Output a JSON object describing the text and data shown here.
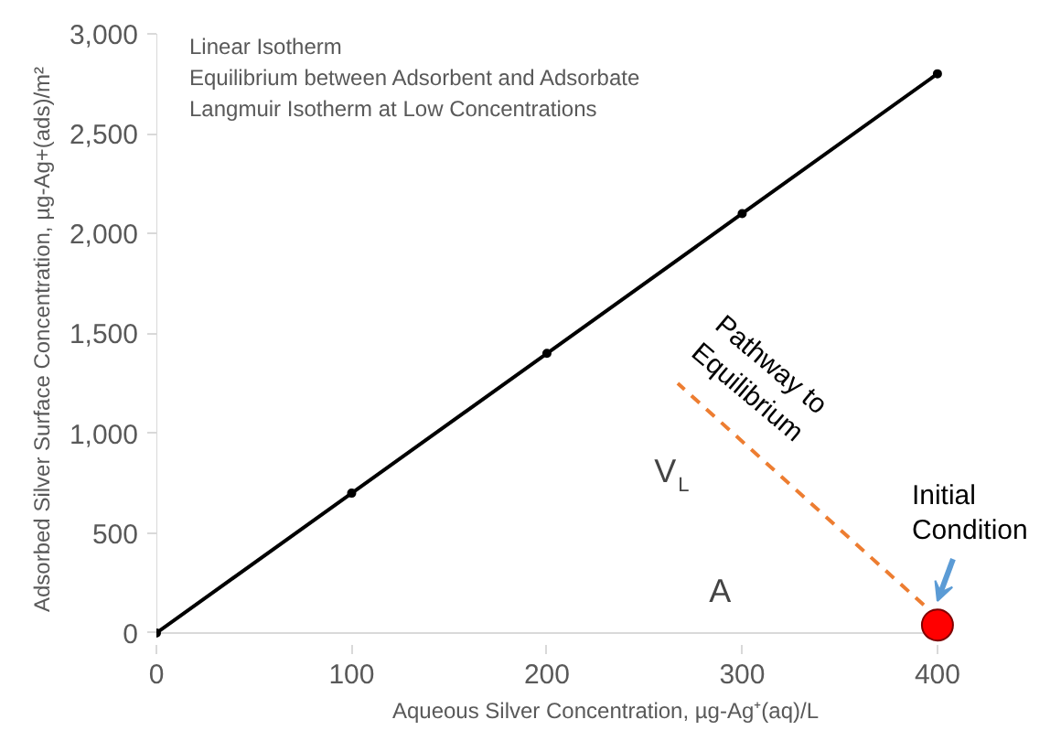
{
  "chart_data": {
    "type": "line",
    "xlabel": "Aqueous Silver Concentration, µg-Ag⁺(aq)/L",
    "ylabel": "Adsorbed Silver Surface Concentration, µg-Ag+(ads)/m²",
    "x": [
      0,
      100,
      200,
      300,
      400
    ],
    "series": [
      {
        "color": "#000000",
        "marker": "circle",
        "line_style": "solid",
        "values": [
          0,
          700,
          1400,
          2100,
          2800
        ]
      },
      {
        "type": "line",
        "color": "#ed7d31",
        "marker": "none",
        "line_style": "dashed",
        "x": [
          393,
          267
        ],
        "values": [
          140,
          1250
        ]
      },
      {
        "type": "scatter",
        "color": "#ff0000",
        "marker": "circle",
        "x": [
          400
        ],
        "values": [
          40
        ]
      }
    ],
    "xlim": [
      0,
      400
    ],
    "xticks": [
      0,
      100,
      200,
      300,
      400
    ],
    "ylim": [
      0,
      3000
    ],
    "yticks": [
      {
        "value": 0,
        "label": "0"
      },
      {
        "value": 500,
        "label": "500"
      },
      {
        "value": 1000,
        "label": "1,000"
      },
      {
        "value": 1500,
        "label": "1,500"
      },
      {
        "value": 2000,
        "label": "2,000"
      },
      {
        "value": 2500,
        "label": "2,500"
      },
      {
        "value": 3000,
        "label": "3,000"
      }
    ],
    "grid": false,
    "annotations": [
      "Linear Isotherm",
      "Equilibrium between Adsorbent and Adsorbate",
      "Langmuir Isotherm at Low Concentrations",
      "Pathway to Equilibrium",
      "V$_{L}$",
      "A",
      {
        "text": "Initial Condition",
        "x": 400,
        "y": 40
      }
    ]
  }
}
